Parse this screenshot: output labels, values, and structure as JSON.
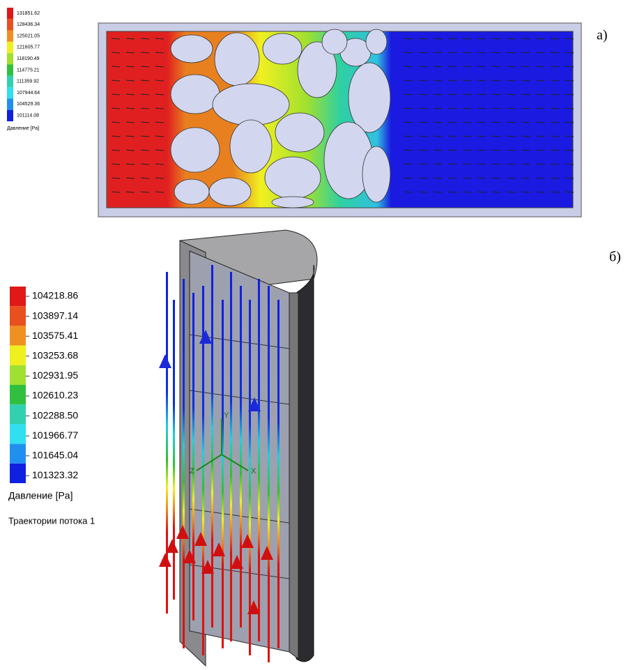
{
  "figure_a": {
    "label": "а)",
    "legend_title": "Давление [Pa]",
    "legend_values": [
      "131851.62",
      "128436.34",
      "125021.05",
      "121605.77",
      "118190.49",
      "114775.21",
      "111359.92",
      "107944.64",
      "104529.36",
      "101114.08"
    ]
  },
  "figure_b": {
    "label": "б)",
    "legend_title": "Давление [Pa]",
    "trajectory_label": "Траектории потока 1",
    "legend_values": [
      "104218.86",
      "103897.14",
      "103575.41",
      "103253.68",
      "102931.95",
      "102610.23",
      "102288.50",
      "101966.77",
      "101645.04",
      "101323.32"
    ],
    "axes": {
      "y": "Y",
      "x": "X",
      "z": "Z"
    }
  }
}
